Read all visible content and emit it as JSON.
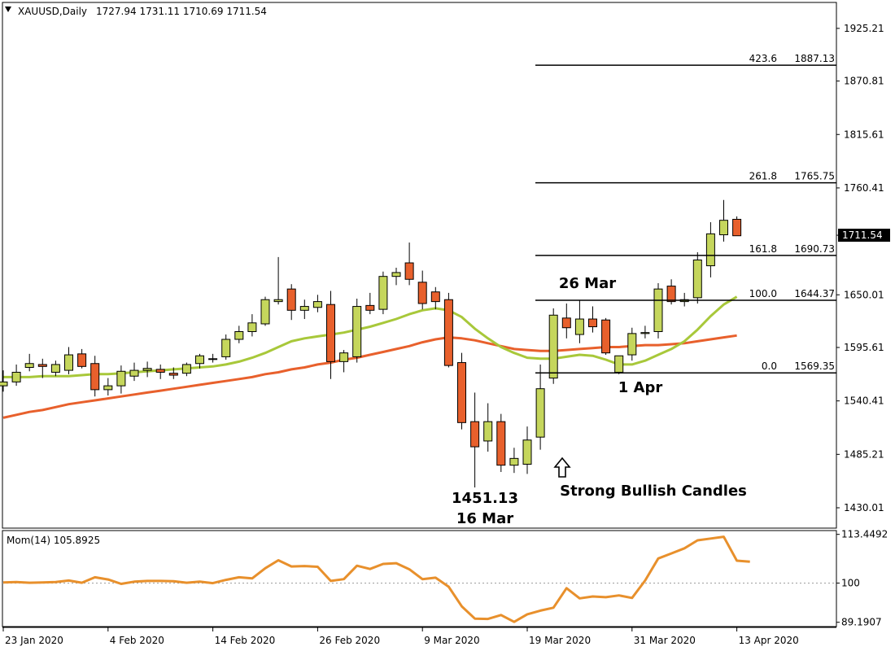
{
  "header": {
    "symbol_timeframe": "XAUUSD,Daily",
    "ohlc": "1727.94 1731.11 1710.69 1711.54"
  },
  "colors": {
    "bull": "#c5d65c",
    "bear": "#e8602c",
    "ma_fast": "#a8c83a",
    "ma_slow": "#e8602c",
    "momentum": "#e8902c",
    "fib_line": "#000000",
    "price_tag_bg": "#000000",
    "price_tag_fg": "#ffffff",
    "grid": "#000000"
  },
  "chart_data": [
    {
      "type": "candlestick",
      "instrument": "XAUUSD",
      "timeframe": "Daily",
      "ylim": [
        1409,
        1952
      ],
      "y_ticks": [
        "1925.21",
        "1870.81",
        "1815.61",
        "1760.41",
        "1711.54",
        "1650.01",
        "1595.61",
        "1540.41",
        "1485.21",
        "1430.01"
      ],
      "last_price": "1711.54",
      "x_labels": [
        "23 Jan 2020",
        "4 Feb 2020",
        "14 Feb 2020",
        "26 Feb 2020",
        "9 Mar 2020",
        "19 Mar 2020",
        "31 Mar 2020",
        "13 Apr 2020"
      ],
      "x_label_positions": [
        0,
        8,
        16,
        24,
        32,
        40,
        48,
        56
      ],
      "candles": [
        {
          "o": 1556,
          "h": 1572,
          "l": 1550,
          "c": 1560
        },
        {
          "o": 1560,
          "h": 1578,
          "l": 1556,
          "c": 1570
        },
        {
          "o": 1575,
          "h": 1589,
          "l": 1571,
          "c": 1579
        },
        {
          "o": 1578,
          "h": 1584,
          "l": 1564,
          "c": 1576
        },
        {
          "o": 1570,
          "h": 1582,
          "l": 1566,
          "c": 1578
        },
        {
          "o": 1572,
          "h": 1596,
          "l": 1568,
          "c": 1588
        },
        {
          "o": 1589,
          "h": 1594,
          "l": 1574,
          "c": 1576
        },
        {
          "o": 1579,
          "h": 1587,
          "l": 1545,
          "c": 1552
        },
        {
          "o": 1552,
          "h": 1564,
          "l": 1546,
          "c": 1556
        },
        {
          "o": 1556,
          "h": 1577,
          "l": 1548,
          "c": 1571
        },
        {
          "o": 1566,
          "h": 1580,
          "l": 1561,
          "c": 1572
        },
        {
          "o": 1572,
          "h": 1581,
          "l": 1565,
          "c": 1574
        },
        {
          "o": 1573,
          "h": 1578,
          "l": 1563,
          "c": 1570
        },
        {
          "o": 1569,
          "h": 1575,
          "l": 1563,
          "c": 1567
        },
        {
          "o": 1569,
          "h": 1580,
          "l": 1566,
          "c": 1578
        },
        {
          "o": 1579,
          "h": 1589,
          "l": 1574,
          "c": 1587
        },
        {
          "o": 1584,
          "h": 1589,
          "l": 1580,
          "c": 1584
        },
        {
          "o": 1586,
          "h": 1609,
          "l": 1583,
          "c": 1604
        },
        {
          "o": 1604,
          "h": 1618,
          "l": 1600,
          "c": 1612
        },
        {
          "o": 1612,
          "h": 1630,
          "l": 1607,
          "c": 1621
        },
        {
          "o": 1620,
          "h": 1648,
          "l": 1618,
          "c": 1645
        },
        {
          "o": 1643,
          "h": 1689,
          "l": 1640,
          "c": 1645
        },
        {
          "o": 1656,
          "h": 1661,
          "l": 1624,
          "c": 1634
        },
        {
          "o": 1634,
          "h": 1645,
          "l": 1625,
          "c": 1638
        },
        {
          "o": 1637,
          "h": 1650,
          "l": 1632,
          "c": 1643
        },
        {
          "o": 1640,
          "h": 1654,
          "l": 1563,
          "c": 1581
        },
        {
          "o": 1581,
          "h": 1593,
          "l": 1570,
          "c": 1590
        },
        {
          "o": 1586,
          "h": 1646,
          "l": 1580,
          "c": 1638
        },
        {
          "o": 1639,
          "h": 1652,
          "l": 1630,
          "c": 1634
        },
        {
          "o": 1635,
          "h": 1674,
          "l": 1630,
          "c": 1669
        },
        {
          "o": 1669,
          "h": 1678,
          "l": 1660,
          "c": 1673
        },
        {
          "o": 1683,
          "h": 1704,
          "l": 1660,
          "c": 1666
        },
        {
          "o": 1663,
          "h": 1675,
          "l": 1635,
          "c": 1641
        },
        {
          "o": 1653,
          "h": 1658,
          "l": 1635,
          "c": 1643
        },
        {
          "o": 1645,
          "h": 1652,
          "l": 1575,
          "c": 1577
        },
        {
          "o": 1580,
          "h": 1590,
          "l": 1511,
          "c": 1518
        },
        {
          "o": 1519,
          "h": 1549,
          "l": 1451,
          "c": 1493
        },
        {
          "o": 1499,
          "h": 1538,
          "l": 1488,
          "c": 1519
        },
        {
          "o": 1519,
          "h": 1527,
          "l": 1467,
          "c": 1474
        },
        {
          "o": 1474,
          "h": 1492,
          "l": 1466,
          "c": 1481
        },
        {
          "o": 1475,
          "h": 1514,
          "l": 1465,
          "c": 1500
        },
        {
          "o": 1503,
          "h": 1578,
          "l": 1490,
          "c": 1553
        },
        {
          "o": 1564,
          "h": 1636,
          "l": 1558,
          "c": 1629
        },
        {
          "o": 1626,
          "h": 1641,
          "l": 1605,
          "c": 1616
        },
        {
          "o": 1609,
          "h": 1644,
          "l": 1600,
          "c": 1625
        },
        {
          "o": 1625,
          "h": 1638,
          "l": 1611,
          "c": 1617
        },
        {
          "o": 1624,
          "h": 1626,
          "l": 1588,
          "c": 1590
        },
        {
          "o": 1570,
          "h": 1586,
          "l": 1568,
          "c": 1587
        },
        {
          "o": 1588,
          "h": 1616,
          "l": 1582,
          "c": 1610
        },
        {
          "o": 1610,
          "h": 1618,
          "l": 1605,
          "c": 1611
        },
        {
          "o": 1612,
          "h": 1662,
          "l": 1605,
          "c": 1656
        },
        {
          "o": 1659,
          "h": 1666,
          "l": 1640,
          "c": 1643
        },
        {
          "o": 1643,
          "h": 1652,
          "l": 1638,
          "c": 1645
        },
        {
          "o": 1647,
          "h": 1694,
          "l": 1641,
          "c": 1686
        },
        {
          "o": 1680,
          "h": 1725,
          "l": 1668,
          "c": 1713
        },
        {
          "o": 1712,
          "h": 1748,
          "l": 1705,
          "c": 1727
        },
        {
          "o": 1728,
          "h": 1731,
          "l": 1711,
          "c": 1711
        }
      ],
      "ma_fast": [
        1565,
        1565,
        1565,
        1566,
        1566,
        1566,
        1567,
        1568,
        1568,
        1569,
        1570,
        1571,
        1572,
        1573,
        1574,
        1575,
        1576,
        1578,
        1581,
        1585,
        1590,
        1596,
        1602,
        1605,
        1607,
        1609,
        1611,
        1614,
        1617,
        1621,
        1625,
        1630,
        1634,
        1636,
        1634,
        1627,
        1615,
        1605,
        1596,
        1590,
        1585,
        1584,
        1584,
        1586,
        1588,
        1587,
        1583,
        1578,
        1578,
        1582,
        1588,
        1594,
        1602,
        1614,
        1628,
        1640,
        1648
      ],
      "ma_slow": [
        1523,
        1526,
        1529,
        1531,
        1534,
        1537,
        1539,
        1541,
        1543,
        1545,
        1547,
        1549,
        1551,
        1553,
        1555,
        1557,
        1559,
        1561,
        1563,
        1565,
        1568,
        1570,
        1573,
        1575,
        1578,
        1580,
        1583,
        1585,
        1588,
        1591,
        1594,
        1597,
        1601,
        1604,
        1606,
        1605,
        1603,
        1600,
        1597,
        1594,
        1593,
        1592,
        1592,
        1593,
        1594,
        1595,
        1596,
        1596,
        1597,
        1598,
        1598,
        1599,
        1600,
        1602,
        1604,
        1606,
        1608
      ]
    },
    {
      "type": "line",
      "name": "Mom(14) 105.8925",
      "ylim": [
        88.0,
        114.5
      ],
      "y_ticks": [
        "113.4492",
        "100",
        "89.1907"
      ],
      "reference_level": 100,
      "values": [
        100.2,
        100.3,
        100.1,
        100.2,
        100.3,
        100.7,
        100.1,
        101.6,
        101.0,
        99.8,
        100.4,
        100.6,
        100.6,
        100.5,
        100.1,
        100.4,
        100.0,
        100.9,
        101.6,
        101.3,
        104.1,
        106.3,
        104.6,
        104.7,
        104.5,
        100.6,
        101.1,
        104.8,
        103.9,
        105.3,
        105.5,
        103.8,
        101.1,
        101.5,
        99.0,
        93.6,
        90.2,
        90.1,
        91.2,
        89.3,
        91.4,
        92.4,
        93.2,
        98.6,
        95.8,
        96.3,
        96.1,
        96.6,
        95.9,
        100.7,
        106.8,
        108.2,
        109.6,
        111.8,
        112.3,
        112.8,
        106.2,
        105.9
      ]
    }
  ],
  "fib_levels": [
    {
      "ratio": "423.6",
      "price": "1887.13",
      "value": 1887.13
    },
    {
      "ratio": "261.8",
      "price": "1765.75",
      "value": 1765.75
    },
    {
      "ratio": "161.8",
      "price": "1690.73",
      "value": 1690.73
    },
    {
      "ratio": "100.0",
      "price": "1644.37",
      "value": 1644.37
    },
    {
      "ratio": "0.0",
      "price": "1569.35",
      "value": 1569.35
    }
  ],
  "annotations": {
    "mar26": "26 Mar",
    "apr1": "1 Apr",
    "low_price": "1451.13",
    "low_date": "16 Mar",
    "bullish": "Strong Bullish Candles"
  },
  "icons": {
    "dropdown": "triangle-down-icon",
    "arrow_up": "hollow-arrow-up-icon"
  }
}
